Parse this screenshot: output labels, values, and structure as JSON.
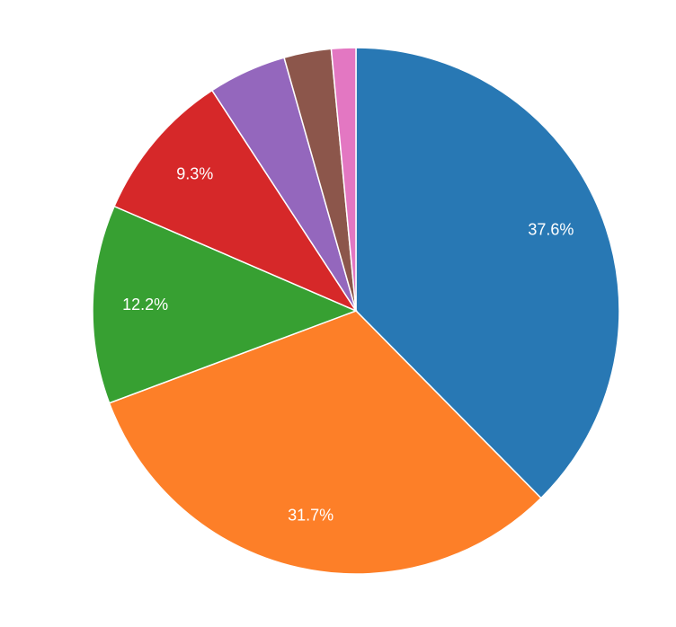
{
  "chart_data": {
    "type": "pie",
    "values": [
      37.6,
      31.7,
      12.2,
      9.3,
      4.8,
      2.9,
      1.5
    ],
    "value_labels": [
      "37.6%",
      "31.7%",
      "12.2%",
      "9.3%",
      null,
      null,
      null
    ],
    "colors": [
      "#2878b4",
      "#fd7f28",
      "#37a032",
      "#d62829",
      "#9467bd",
      "#8c564b",
      "#e377c2"
    ]
  }
}
